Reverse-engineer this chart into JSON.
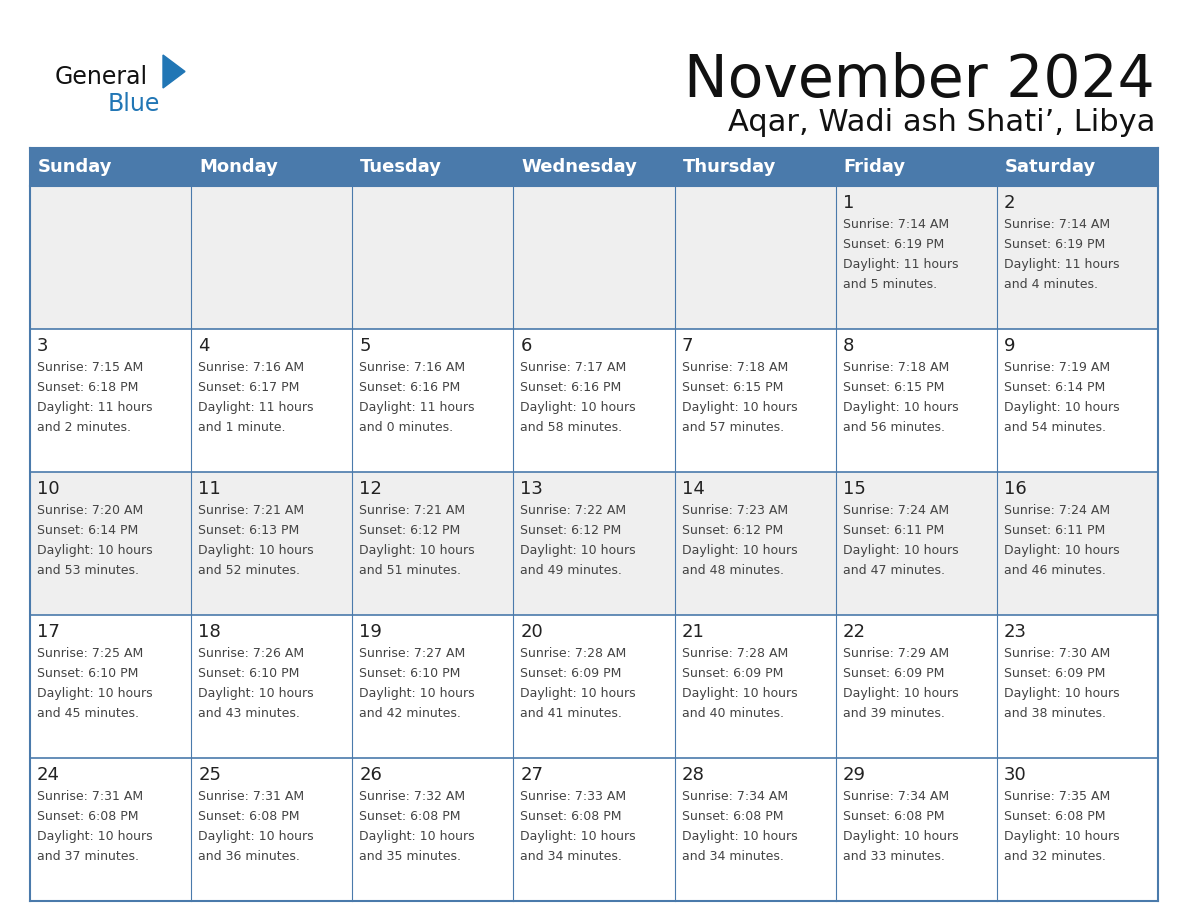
{
  "title": "November 2024",
  "subtitle": "Aqar, Wadi ash Shati’, Libya",
  "days_of_week": [
    "Sunday",
    "Monday",
    "Tuesday",
    "Wednesday",
    "Thursday",
    "Friday",
    "Saturday"
  ],
  "header_bg": "#4a7aab",
  "header_text": "#ffffff",
  "row_bg": [
    "#efefef",
    "#ffffff",
    "#efefef",
    "#ffffff",
    "#ffffff"
  ],
  "border_color": "#4a7aab",
  "day_number_color": "#222222",
  "text_color": "#444444",
  "title_color": "#111111",
  "subtitle_color": "#111111",
  "blue_color": "#2176b5",
  "general_color": "#111111",
  "calendar_data": [
    [
      null,
      null,
      null,
      null,
      null,
      {
        "day": 1,
        "sunrise": "7:14 AM",
        "sunset": "6:19 PM",
        "daylight": "11 hours and 5 minutes."
      },
      {
        "day": 2,
        "sunrise": "7:14 AM",
        "sunset": "6:19 PM",
        "daylight": "11 hours and 4 minutes."
      }
    ],
    [
      {
        "day": 3,
        "sunrise": "7:15 AM",
        "sunset": "6:18 PM",
        "daylight": "11 hours and 2 minutes."
      },
      {
        "day": 4,
        "sunrise": "7:16 AM",
        "sunset": "6:17 PM",
        "daylight": "11 hours and 1 minute."
      },
      {
        "day": 5,
        "sunrise": "7:16 AM",
        "sunset": "6:16 PM",
        "daylight": "11 hours and 0 minutes."
      },
      {
        "day": 6,
        "sunrise": "7:17 AM",
        "sunset": "6:16 PM",
        "daylight": "10 hours and 58 minutes."
      },
      {
        "day": 7,
        "sunrise": "7:18 AM",
        "sunset": "6:15 PM",
        "daylight": "10 hours and 57 minutes."
      },
      {
        "day": 8,
        "sunrise": "7:18 AM",
        "sunset": "6:15 PM",
        "daylight": "10 hours and 56 minutes."
      },
      {
        "day": 9,
        "sunrise": "7:19 AM",
        "sunset": "6:14 PM",
        "daylight": "10 hours and 54 minutes."
      }
    ],
    [
      {
        "day": 10,
        "sunrise": "7:20 AM",
        "sunset": "6:14 PM",
        "daylight": "10 hours and 53 minutes."
      },
      {
        "day": 11,
        "sunrise": "7:21 AM",
        "sunset": "6:13 PM",
        "daylight": "10 hours and 52 minutes."
      },
      {
        "day": 12,
        "sunrise": "7:21 AM",
        "sunset": "6:12 PM",
        "daylight": "10 hours and 51 minutes."
      },
      {
        "day": 13,
        "sunrise": "7:22 AM",
        "sunset": "6:12 PM",
        "daylight": "10 hours and 49 minutes."
      },
      {
        "day": 14,
        "sunrise": "7:23 AM",
        "sunset": "6:12 PM",
        "daylight": "10 hours and 48 minutes."
      },
      {
        "day": 15,
        "sunrise": "7:24 AM",
        "sunset": "6:11 PM",
        "daylight": "10 hours and 47 minutes."
      },
      {
        "day": 16,
        "sunrise": "7:24 AM",
        "sunset": "6:11 PM",
        "daylight": "10 hours and 46 minutes."
      }
    ],
    [
      {
        "day": 17,
        "sunrise": "7:25 AM",
        "sunset": "6:10 PM",
        "daylight": "10 hours and 45 minutes."
      },
      {
        "day": 18,
        "sunrise": "7:26 AM",
        "sunset": "6:10 PM",
        "daylight": "10 hours and 43 minutes."
      },
      {
        "day": 19,
        "sunrise": "7:27 AM",
        "sunset": "6:10 PM",
        "daylight": "10 hours and 42 minutes."
      },
      {
        "day": 20,
        "sunrise": "7:28 AM",
        "sunset": "6:09 PM",
        "daylight": "10 hours and 41 minutes."
      },
      {
        "day": 21,
        "sunrise": "7:28 AM",
        "sunset": "6:09 PM",
        "daylight": "10 hours and 40 minutes."
      },
      {
        "day": 22,
        "sunrise": "7:29 AM",
        "sunset": "6:09 PM",
        "daylight": "10 hours and 39 minutes."
      },
      {
        "day": 23,
        "sunrise": "7:30 AM",
        "sunset": "6:09 PM",
        "daylight": "10 hours and 38 minutes."
      }
    ],
    [
      {
        "day": 24,
        "sunrise": "7:31 AM",
        "sunset": "6:08 PM",
        "daylight": "10 hours and 37 minutes."
      },
      {
        "day": 25,
        "sunrise": "7:31 AM",
        "sunset": "6:08 PM",
        "daylight": "10 hours and 36 minutes."
      },
      {
        "day": 26,
        "sunrise": "7:32 AM",
        "sunset": "6:08 PM",
        "daylight": "10 hours and 35 minutes."
      },
      {
        "day": 27,
        "sunrise": "7:33 AM",
        "sunset": "6:08 PM",
        "daylight": "10 hours and 34 minutes."
      },
      {
        "day": 28,
        "sunrise": "7:34 AM",
        "sunset": "6:08 PM",
        "daylight": "10 hours and 34 minutes."
      },
      {
        "day": 29,
        "sunrise": "7:34 AM",
        "sunset": "6:08 PM",
        "daylight": "10 hours and 33 minutes."
      },
      {
        "day": 30,
        "sunrise": "7:35 AM",
        "sunset": "6:08 PM",
        "daylight": "10 hours and 32 minutes."
      }
    ]
  ]
}
